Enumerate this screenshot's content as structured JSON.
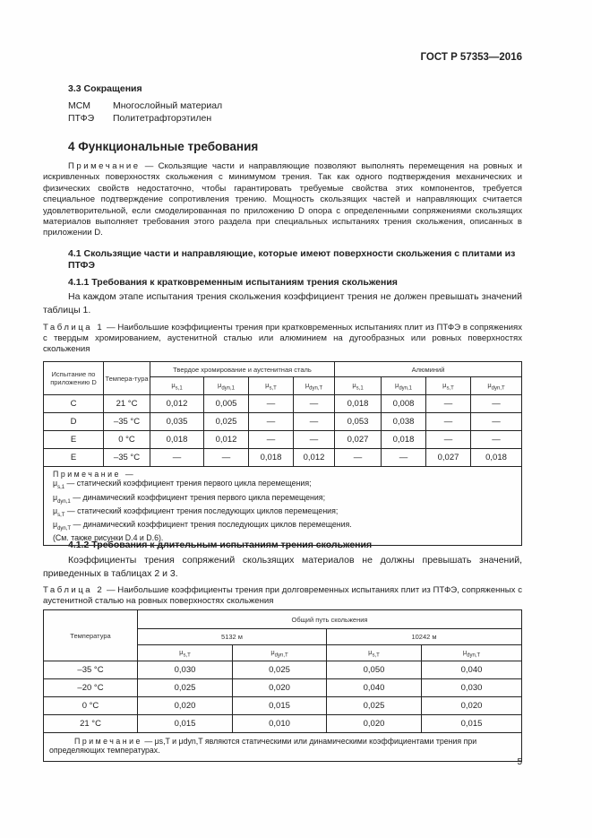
{
  "header": {
    "standard": "ГОСТ Р 57353—2016"
  },
  "s33": {
    "title": "3.3 Сокращения",
    "items": [
      {
        "abbr": "МСМ",
        "text": "Многослойный материал"
      },
      {
        "abbr": "ПТФЭ",
        "text": "Политетрафторэтилен"
      }
    ]
  },
  "s4": {
    "title": "4 Функциональные требования",
    "note_label": "Примечание",
    "note_text": " — Скользящие части и направляющие позволяют выполнять перемещения на ровных и искривленных поверхностях скольжения с минимумом трения. Так как одного подтверждения механических и физических свойств недостаточно, чтобы гарантировать требуемые свойства этих компонентов, требуется специальное подтверждение сопротивления трению. Мощность скользящих частей и направляющих считается удовлетворительной, если смоделированная по приложению D опора с определенными сопряжениями скользящих материалов выполняет требования этого раздела при специальных испытаниях трения скольжения, описанных в приложении D."
  },
  "s41": {
    "title": "4.1 Скользящие части и направляющие, которые имеют поверхности скольжения с плитами из ПТФЭ"
  },
  "s411": {
    "title": "4.1.1 Требования к кратковременным испытаниям трения скольжения",
    "text": "На каждом этапе испытания трения скольжения коэффициент трения не должен превышать значений таблицы 1."
  },
  "table1": {
    "label": "Таблица 1",
    "caption": " — Наибольшие коэффициенты трения при кратковременных испытаниях плит из ПТФЭ в сопряжениях с твердым хромированием, аустенитной сталью или алюминием на дугообразных или ровных поверхностях скольжения",
    "h_test": "Испытание по приложению D",
    "h_temp": "Темпера-тура",
    "h_group1": "Твердое хромирование и аустенитная сталь",
    "h_group2": "Алюминий",
    "sub": [
      [
        "s,1"
      ],
      [
        "dyn,1"
      ],
      [
        "s,T"
      ],
      [
        "dyn,T"
      ]
    ],
    "mu": "μ",
    "rows": [
      [
        "C",
        "21 °C",
        "0,012",
        "0,005",
        "—",
        "—",
        "0,018",
        "0,008",
        "—",
        "—"
      ],
      [
        "D",
        "–35 °C",
        "0,035",
        "0,025",
        "—",
        "—",
        "0,053",
        "0,038",
        "—",
        "—"
      ],
      [
        "E",
        "0 °C",
        "0,018",
        "0,012",
        "—",
        "—",
        "0,027",
        "0,018",
        "—",
        "—"
      ],
      [
        "E",
        "–35 °C",
        "—",
        "—",
        "0,018",
        "0,012",
        "—",
        "—",
        "0,027",
        "0,018"
      ]
    ],
    "note_label": "Примечание —",
    "note_lines": [
      {
        "sub": "s,1",
        "text": " — статический коэффициент трения первого цикла перемещения;"
      },
      {
        "sub": "dyn,1",
        "text": " — динамический коэффициент трения первого цикла перемещения;"
      },
      {
        "sub": "s,T",
        "text": " — статический коэффициент трения последующих циклов перемещения;"
      },
      {
        "sub": "dyn,T",
        "text": " — динамический коэффициент трения последующих циклов перемещения."
      }
    ],
    "note_ref": "(См. также рисунки D.4 и D.6)."
  },
  "s412": {
    "title": "4.1.2 Требования к длительным испытаниям трения скольжения",
    "text": "Коэффициенты трения сопряжений скользящих материалов не должны превышать значений, приведенных в таблицах 2 и 3."
  },
  "table2": {
    "label": "Таблица 2",
    "caption": " — Наибольшие коэффициенты трения при долговременных испытаниях плит из ПТФЭ, сопряженных с аустенитной сталью на ровных поверхностях скольжения",
    "h_temp": "Температура",
    "h_path": "Общий путь скольжения",
    "h_5132": "5132 м",
    "h_10242": "10242 м",
    "rows": [
      [
        "–35 °C",
        "0,030",
        "0,025",
        "0,050",
        "0,040"
      ],
      [
        "–20 °C",
        "0,025",
        "0,020",
        "0,040",
        "0,030"
      ],
      [
        "0 °C",
        "0,020",
        "0,015",
        "0,025",
        "0,020"
      ],
      [
        "21 °C",
        "0,015",
        "0,010",
        "0,020",
        "0,015"
      ]
    ],
    "note_label": "Примечание",
    "note_mid": " — μs,T и μdyn,T являются статическими или динамическими коэффициентами трения при определяющих температурах."
  },
  "page_number": "5"
}
